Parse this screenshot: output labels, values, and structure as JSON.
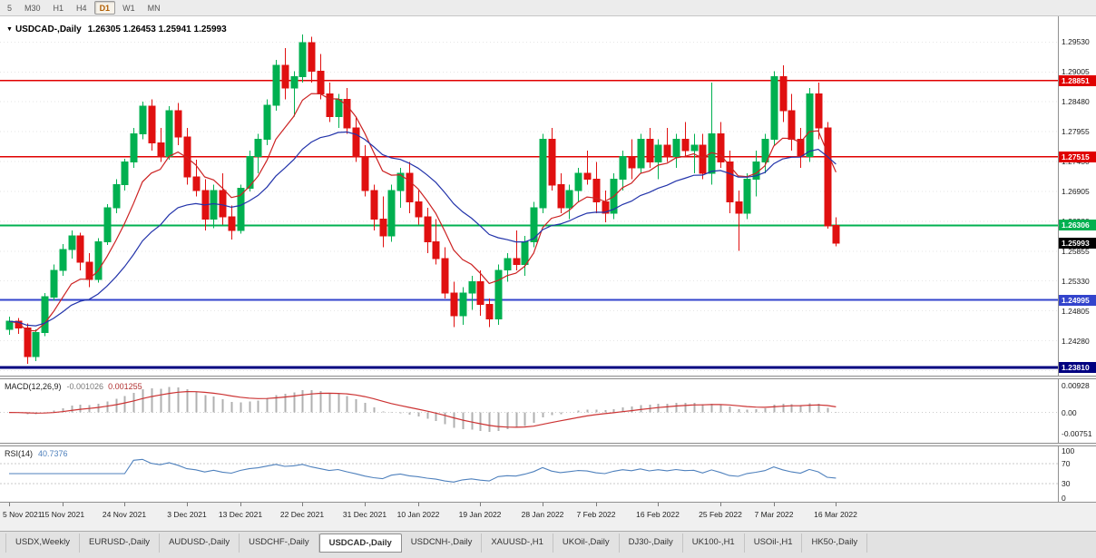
{
  "toolbar": {
    "timeframes": [
      {
        "label": "5",
        "active": false
      },
      {
        "label": "M30",
        "active": false
      },
      {
        "label": "H1",
        "active": false
      },
      {
        "label": "H4",
        "active": false
      },
      {
        "label": "D1",
        "active": true
      },
      {
        "label": "W1",
        "active": false
      },
      {
        "label": "MN",
        "active": false
      }
    ]
  },
  "chart": {
    "symbol": "USDCAD-,Daily",
    "ohlc_text": "1.26305 1.26453 1.25941 1.25993",
    "dropdown_icon": "▼"
  },
  "chart_data": {
    "type": "candlestick",
    "symbol": "USDCAD",
    "timeframe": "Daily",
    "ylim": [
      1.2373,
      1.2995
    ],
    "y_ticks": [
      1.2953,
      1.29005,
      1.2848,
      1.27955,
      1.2743,
      1.26905,
      1.2638,
      1.25855,
      1.2533,
      1.24805,
      1.2428,
      1.23755
    ],
    "levels": [
      {
        "price": 1.28851,
        "label": "1.28851",
        "color": "#e00000",
        "width": 1.5,
        "line": true
      },
      {
        "price": 1.27515,
        "label": "1.27515",
        "color": "#e00000",
        "width": 1.5,
        "line": true
      },
      {
        "price": 1.26306,
        "label": "1.26306",
        "color": "#00b050",
        "width": 2,
        "line": true
      },
      {
        "price": 1.25993,
        "label": "1.25993",
        "color": "#000000",
        "width": 1,
        "line": false
      },
      {
        "price": 1.24995,
        "label": "1.24995",
        "color": "#3344cc",
        "width": 2,
        "line": true
      },
      {
        "price": 1.2381,
        "label": "1.23810",
        "color": "#000080",
        "width": 3,
        "line": true
      }
    ],
    "style": {
      "up_color": "#00b050",
      "down_color": "#e01010",
      "ma_fast_period": 8,
      "ma_fast_color": "#cc2222",
      "ma_slow_period": 21,
      "ma_slow_color": "#2233aa"
    },
    "date_ticks": [
      {
        "index": 0,
        "label": "5 Nov 2021"
      },
      {
        "index": 6,
        "label": "15 Nov 2021"
      },
      {
        "index": 13,
        "label": "24 Nov 2021"
      },
      {
        "index": 20,
        "label": "3 Dec 2021"
      },
      {
        "index": 26,
        "label": "13 Dec 2021"
      },
      {
        "index": 33,
        "label": "22 Dec 2021"
      },
      {
        "index": 40,
        "label": "31 Dec 2021"
      },
      {
        "index": 46,
        "label": "10 Jan 2022"
      },
      {
        "index": 53,
        "label": "19 Jan 2022"
      },
      {
        "index": 60,
        "label": "28 Jan 2022"
      },
      {
        "index": 66,
        "label": "7 Feb 2022"
      },
      {
        "index": 73,
        "label": "16 Feb 2022"
      },
      {
        "index": 80,
        "label": "25 Feb 2022"
      },
      {
        "index": 86,
        "label": "7 Mar 2022"
      },
      {
        "index": 93,
        "label": "16 Mar 2022"
      }
    ],
    "candles": [
      [
        1.2448,
        1.247,
        1.2438,
        1.2462
      ],
      [
        1.2462,
        1.2468,
        1.244,
        1.245
      ],
      [
        1.245,
        1.2458,
        1.2387,
        1.24
      ],
      [
        1.24,
        1.2448,
        1.2392,
        1.2442
      ],
      [
        1.2442,
        1.2512,
        1.2436,
        1.2505
      ],
      [
        1.2505,
        1.2562,
        1.2498,
        1.2552
      ],
      [
        1.2552,
        1.2598,
        1.2542,
        1.2588
      ],
      [
        1.2588,
        1.2622,
        1.2572,
        1.2612
      ],
      [
        1.2612,
        1.2618,
        1.2552,
        1.2566
      ],
      [
        1.2566,
        1.2582,
        1.2522,
        1.2536
      ],
      [
        1.2536,
        1.2608,
        1.253,
        1.2602
      ],
      [
        1.2602,
        1.2668,
        1.2596,
        1.2662
      ],
      [
        1.2662,
        1.2712,
        1.2652,
        1.2702
      ],
      [
        1.2702,
        1.2748,
        1.2692,
        1.2742
      ],
      [
        1.2742,
        1.2802,
        1.2732,
        1.2792
      ],
      [
        1.2792,
        1.2848,
        1.2782,
        1.284
      ],
      [
        1.284,
        1.2852,
        1.2762,
        1.2776
      ],
      [
        1.2776,
        1.2802,
        1.2742,
        1.2752
      ],
      [
        1.2752,
        1.284,
        1.2746,
        1.2832
      ],
      [
        1.2832,
        1.2846,
        1.2772,
        1.2786
      ],
      [
        1.2786,
        1.2802,
        1.2702,
        1.2716
      ],
      [
        1.2716,
        1.2746,
        1.2682,
        1.2692
      ],
      [
        1.2692,
        1.2712,
        1.2622,
        1.2642
      ],
      [
        1.2642,
        1.2702,
        1.2626,
        1.2692
      ],
      [
        1.2692,
        1.2722,
        1.2632,
        1.2646
      ],
      [
        1.2646,
        1.2666,
        1.2606,
        1.2622
      ],
      [
        1.2622,
        1.2702,
        1.2616,
        1.2696
      ],
      [
        1.2696,
        1.2762,
        1.269,
        1.2752
      ],
      [
        1.2752,
        1.2792,
        1.2722,
        1.2782
      ],
      [
        1.2782,
        1.2852,
        1.2772,
        1.2842
      ],
      [
        1.2842,
        1.2922,
        1.2832,
        1.2912
      ],
      [
        1.2912,
        1.2942,
        1.2852,
        1.2872
      ],
      [
        1.2872,
        1.2902,
        1.2822,
        1.2892
      ],
      [
        1.2892,
        1.2966,
        1.2882,
        1.2952
      ],
      [
        1.2952,
        1.2962,
        1.2882,
        1.2902
      ],
      [
        1.2902,
        1.2932,
        1.2852,
        1.2862
      ],
      [
        1.2862,
        1.2882,
        1.2812,
        1.2822
      ],
      [
        1.2822,
        1.2862,
        1.2802,
        1.2852
      ],
      [
        1.2852,
        1.2872,
        1.2792,
        1.2802
      ],
      [
        1.2802,
        1.2822,
        1.2742,
        1.2752
      ],
      [
        1.2752,
        1.2772,
        1.2682,
        1.2692
      ],
      [
        1.2692,
        1.2702,
        1.2622,
        1.2642
      ],
      [
        1.2642,
        1.2682,
        1.2592,
        1.2612
      ],
      [
        1.2612,
        1.2702,
        1.2602,
        1.2692
      ],
      [
        1.2692,
        1.2732,
        1.2662,
        1.2722
      ],
      [
        1.2722,
        1.2742,
        1.2652,
        1.2672
      ],
      [
        1.2672,
        1.2692,
        1.2632,
        1.2646
      ],
      [
        1.2646,
        1.2662,
        1.2582,
        1.2602
      ],
      [
        1.2602,
        1.2642,
        1.2562,
        1.2572
      ],
      [
        1.2572,
        1.2592,
        1.2502,
        1.2512
      ],
      [
        1.2512,
        1.2532,
        1.2452,
        1.2472
      ],
      [
        1.2472,
        1.2522,
        1.2456,
        1.2512
      ],
      [
        1.2512,
        1.2542,
        1.2482,
        1.2532
      ],
      [
        1.2532,
        1.2552,
        1.2472,
        1.2492
      ],
      [
        1.2492,
        1.2502,
        1.2452,
        1.2466
      ],
      [
        1.2466,
        1.2562,
        1.2456,
        1.2552
      ],
      [
        1.2552,
        1.2582,
        1.2532,
        1.2572
      ],
      [
        1.2572,
        1.2622,
        1.2552,
        1.2562
      ],
      [
        1.2562,
        1.2612,
        1.2542,
        1.2602
      ],
      [
        1.2602,
        1.2672,
        1.2592,
        1.2662
      ],
      [
        1.2662,
        1.2792,
        1.2652,
        1.2782
      ],
      [
        1.2782,
        1.2802,
        1.2692,
        1.2702
      ],
      [
        1.2702,
        1.2722,
        1.2652,
        1.2662
      ],
      [
        1.2662,
        1.2702,
        1.2642,
        1.2692
      ],
      [
        1.2692,
        1.2732,
        1.2672,
        1.2722
      ],
      [
        1.2722,
        1.2762,
        1.2702,
        1.2712
      ],
      [
        1.2712,
        1.2742,
        1.2652,
        1.2672
      ],
      [
        1.2672,
        1.2692,
        1.2636,
        1.2652
      ],
      [
        1.2652,
        1.2722,
        1.2642,
        1.2712
      ],
      [
        1.2712,
        1.2762,
        1.2692,
        1.2752
      ],
      [
        1.2752,
        1.2782,
        1.2712,
        1.2732
      ],
      [
        1.2732,
        1.2792,
        1.2722,
        1.2782
      ],
      [
        1.2782,
        1.2802,
        1.2732,
        1.2742
      ],
      [
        1.2742,
        1.2782,
        1.2712,
        1.2772
      ],
      [
        1.2772,
        1.2802,
        1.2742,
        1.2752
      ],
      [
        1.2752,
        1.2792,
        1.2732,
        1.2782
      ],
      [
        1.2782,
        1.2812,
        1.2752,
        1.2762
      ],
      [
        1.2762,
        1.2792,
        1.2722,
        1.2772
      ],
      [
        1.2772,
        1.2792,
        1.2712,
        1.2722
      ],
      [
        1.2722,
        1.2882,
        1.2702,
        1.2792
      ],
      [
        1.2792,
        1.2812,
        1.2732,
        1.2742
      ],
      [
        1.2742,
        1.2762,
        1.2652,
        1.2672
      ],
      [
        1.2672,
        1.2692,
        1.2586,
        1.2652
      ],
      [
        1.2652,
        1.2722,
        1.2642,
        1.2712
      ],
      [
        1.2712,
        1.2762,
        1.2682,
        1.2742
      ],
      [
        1.2742,
        1.2792,
        1.2722,
        1.2782
      ],
      [
        1.2782,
        1.2902,
        1.2772,
        1.2892
      ],
      [
        1.2892,
        1.2912,
        1.2812,
        1.2832
      ],
      [
        1.2832,
        1.2862,
        1.2762,
        1.2782
      ],
      [
        1.2782,
        1.2802,
        1.2732,
        1.2752
      ],
      [
        1.2752,
        1.2872,
        1.2742,
        1.2862
      ],
      [
        1.2862,
        1.2882,
        1.2782,
        1.2802
      ],
      [
        1.2802,
        1.2812,
        1.2625,
        1.263
      ],
      [
        1.26305,
        1.26453,
        1.25941,
        1.25993
      ]
    ]
  },
  "indicators": {
    "macd": {
      "name": "MACD(12,26,9)",
      "value_main": "-0.001026",
      "value_signal": "0.001255",
      "params": {
        "fast": 12,
        "slow": 26,
        "signal": 9
      },
      "ylim": [
        -0.0105,
        0.0115
      ],
      "axis_ticks": [
        {
          "label": "0.00928",
          "value": 0.00928
        },
        {
          "label": "0.00",
          "value": 0
        },
        {
          "label": "-0.00751",
          "value": -0.00751
        }
      ],
      "histogram_color": "#b0b0b0",
      "signal_color": "#cc3333"
    },
    "rsi": {
      "name": "RSI(14)",
      "value": "40.7376",
      "period": 14,
      "ylim": [
        0,
        100
      ],
      "axis_ticks": [
        {
          "label": "100",
          "value": 100
        },
        {
          "label": "70",
          "value": 70
        },
        {
          "label": "30",
          "value": 30
        },
        {
          "label": "0",
          "value": 0
        }
      ],
      "levels": [
        70,
        30
      ],
      "line_color": "#4f81bd"
    }
  },
  "tabs": {
    "items": [
      {
        "label": "USDX,Weekly",
        "active": false
      },
      {
        "label": "EURUSD-,Daily",
        "active": false
      },
      {
        "label": "AUDUSD-,Daily",
        "active": false
      },
      {
        "label": "USDCHF-,Daily",
        "active": false
      },
      {
        "label": "USDCAD-,Daily",
        "active": true
      },
      {
        "label": "USDCNH-,Daily",
        "active": false
      },
      {
        "label": "XAUUSD-,H1",
        "active": false
      },
      {
        "label": "UKOil-,Daily",
        "active": false
      },
      {
        "label": "DJ30-,Daily",
        "active": false
      },
      {
        "label": "UK100-,H1",
        "active": false
      },
      {
        "label": "USOil-,H1",
        "active": false
      },
      {
        "label": "HK50-,Daily",
        "active": false
      }
    ]
  }
}
